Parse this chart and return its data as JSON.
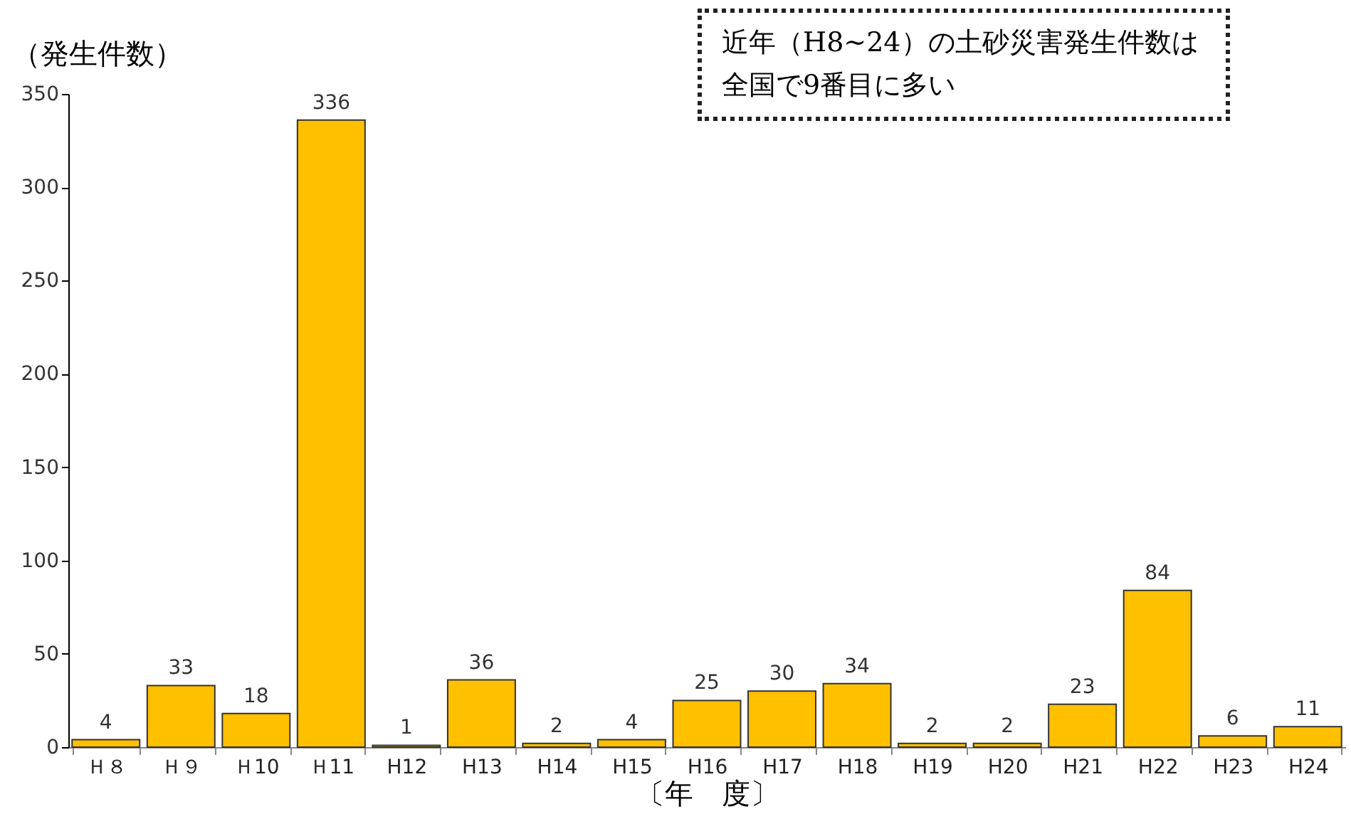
{
  "chart_data": {
    "type": "bar",
    "ylabel": "（発生件数）",
    "xlabel": "〔年　度〕",
    "categories": [
      "Ｈ８",
      "Ｈ９",
      "Ｈ10",
      "Ｈ11",
      "H12",
      "H13",
      "H14",
      "H15",
      "H16",
      "H17",
      "H18",
      "H19",
      "H20",
      "H21",
      "H22",
      "H23",
      "H24"
    ],
    "values": [
      4,
      33,
      18,
      336,
      1,
      36,
      2,
      4,
      25,
      30,
      34,
      2,
      2,
      23,
      84,
      6,
      11
    ],
    "color": "#ffc000",
    "ylim": [
      0,
      350
    ],
    "yticks": [
      0,
      50,
      100,
      150,
      200,
      250,
      300,
      350
    ],
    "grid": false,
    "data_labels": true,
    "annotations": [
      "近年（H8~24）の土砂災害発生件数は全国で9番目に多い"
    ]
  }
}
